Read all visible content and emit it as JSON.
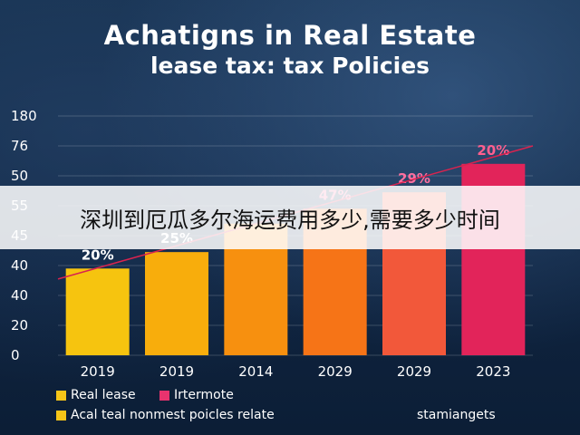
{
  "title_line1": "Achatigns in Real Estate",
  "title_line2": "lease tax: tax Policies",
  "overlay_banner": "深圳到厄瓜多尔海运费用多少,需要多少时间",
  "source_note": "stamiangets",
  "colors": {
    "background": "#0f2440",
    "legend_real_lease": "#f5c518",
    "legend_irtermote": "#e8336e",
    "legend_acal": "#f5c518",
    "trend_line": "#d8234f"
  },
  "chart_data": {
    "type": "bar",
    "categories": [
      "2019",
      "2019",
      "2014",
      "2029",
      "2029",
      "2023"
    ],
    "y_tick_labels": [
      "0",
      "20",
      "40",
      "40",
      "45",
      "55",
      "50",
      "76",
      "180"
    ],
    "y_tick_positions": [
      0,
      1,
      2,
      3,
      4,
      5,
      6,
      7,
      8
    ],
    "bar_levels": [
      2.9,
      3.45,
      4.4,
      4.9,
      5.45,
      6.4
    ],
    "bar_colors": [
      "#f6c40f",
      "#f8ad0c",
      "#f7900f",
      "#f67417",
      "#f2583a",
      "#e2245a"
    ],
    "data_labels": [
      "20%",
      "25%",
      "",
      "47%",
      "29%",
      "20%"
    ],
    "data_label_colors": [
      "#ffffff",
      "#ffffff",
      "#ffffff",
      "#ff6fa0",
      "#ff6fa0",
      "#ff5f8f"
    ],
    "trend_line": {
      "y_start": 2.55,
      "y_end": 7.0
    },
    "legend": [
      "Real lease",
      "Irtermote",
      "Acal teal nonmest poicles relate"
    ],
    "grid": true,
    "ylim": [
      0,
      8
    ]
  }
}
